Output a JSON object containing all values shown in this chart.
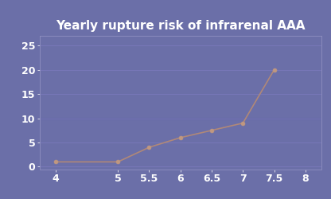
{
  "title": "Yearly rupture risk of infrarenal AAA",
  "x_values": [
    4,
    5,
    5.5,
    6,
    6.5,
    7,
    7.5
  ],
  "y_values": [
    1,
    1,
    4,
    6,
    7.5,
    9,
    20
  ],
  "x_ticks": [
    4,
    5,
    5.5,
    6,
    6.5,
    7,
    7.5,
    8
  ],
  "x_tick_labels": [
    "4",
    "5",
    "5.5",
    "6",
    "6.5",
    "7",
    "7.5",
    "8"
  ],
  "y_ticks": [
    0,
    5,
    10,
    15,
    20,
    25
  ],
  "xlim": [
    3.75,
    8.25
  ],
  "ylim": [
    -0.5,
    27
  ],
  "line_color": "#b08878",
  "marker_color": "#c09880",
  "background_color": "#6b6fa8",
  "axes_background_color": "#6b6fa8",
  "grid_color": "#7878b8",
  "grid_color_dark": "#5555a0",
  "title_color": "#ffffff",
  "tick_color": "#ffffff",
  "spine_color": "#9090c0",
  "title_fontsize": 11,
  "tick_fontsize": 9
}
